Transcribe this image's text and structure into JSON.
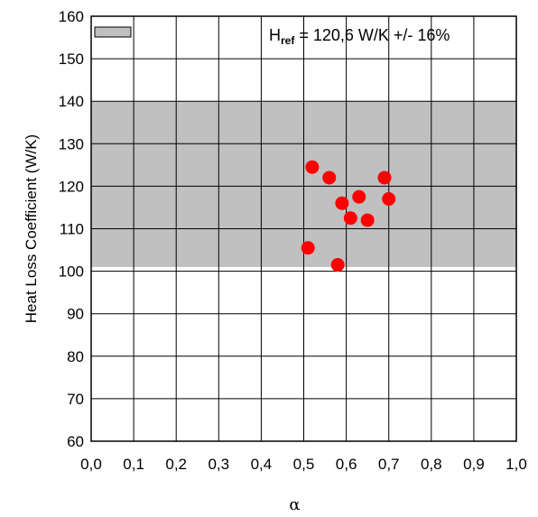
{
  "chart_data": {
    "type": "scatter",
    "xlabel": "α",
    "ylabel": "Heat Loss Coefficient (W/K)",
    "xlim": [
      0.0,
      1.0
    ],
    "ylim": [
      60,
      160
    ],
    "xticks": [
      "0,0",
      "0,1",
      "0,2",
      "0,3",
      "0,4",
      "0,5",
      "0,6",
      "0,7",
      "0,8",
      "0,9",
      "1,0"
    ],
    "yticks": [
      "60",
      "70",
      "80",
      "90",
      "100",
      "110",
      "120",
      "130",
      "140",
      "150",
      "160"
    ],
    "grid": true,
    "band": {
      "y_min": 101,
      "y_max": 140,
      "color": "#c0c0c0"
    },
    "legend": {
      "placement": "top",
      "label_main": "H",
      "label_sub": "ref",
      "label_rest": " = 120,6 W/K +/- 16%"
    },
    "points": [
      {
        "x": 0.51,
        "y": 105.5
      },
      {
        "x": 0.52,
        "y": 124.5
      },
      {
        "x": 0.56,
        "y": 122
      },
      {
        "x": 0.58,
        "y": 101.5
      },
      {
        "x": 0.59,
        "y": 116
      },
      {
        "x": 0.61,
        "y": 112.5
      },
      {
        "x": 0.63,
        "y": 117.5
      },
      {
        "x": 0.65,
        "y": 112
      },
      {
        "x": 0.69,
        "y": 122
      },
      {
        "x": 0.7,
        "y": 117
      }
    ],
    "point_color": "#ff0000"
  }
}
